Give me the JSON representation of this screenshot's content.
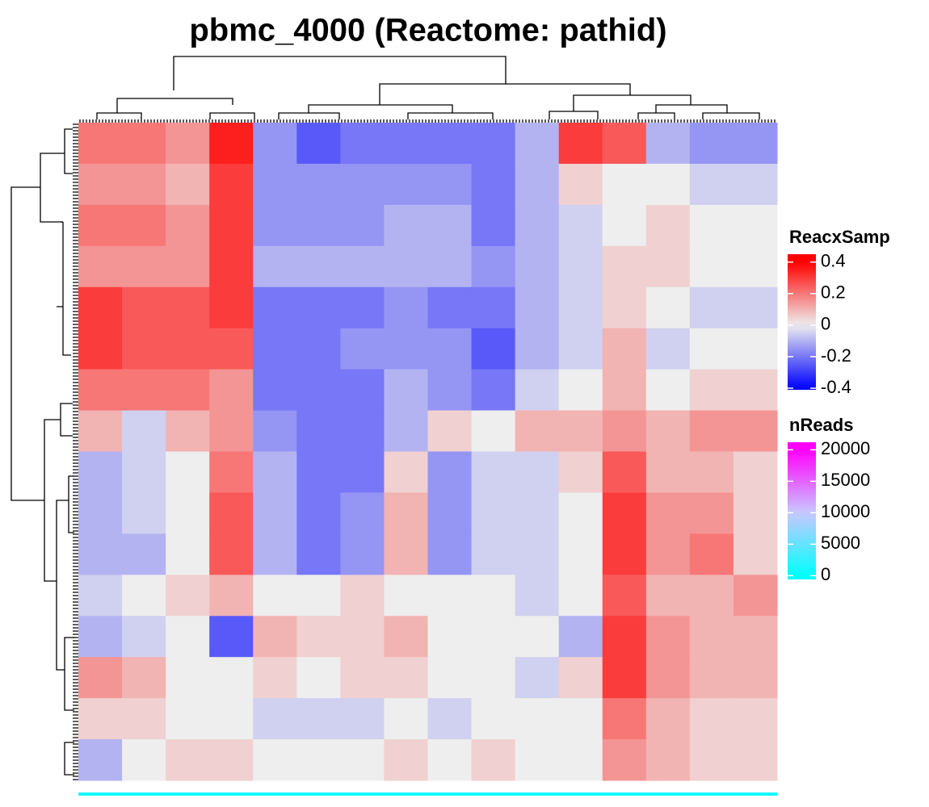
{
  "chart_data": {
    "type": "heatmap",
    "title": "pbmc_4000 (Reactome: pathid)",
    "values": [
      [
        0.2,
        0.2,
        0.15,
        0.35,
        -0.15,
        -0.25,
        -0.2,
        -0.2,
        -0.2,
        -0.2,
        -0.1,
        0.3,
        0.25,
        -0.1,
        -0.15,
        -0.15
      ],
      [
        0.15,
        0.15,
        0.1,
        0.3,
        -0.15,
        -0.15,
        -0.15,
        -0.15,
        -0.15,
        -0.2,
        -0.1,
        0.05,
        0.0,
        0.0,
        -0.05,
        -0.05
      ],
      [
        0.2,
        0.2,
        0.15,
        0.3,
        -0.15,
        -0.15,
        -0.15,
        -0.1,
        -0.1,
        -0.2,
        -0.1,
        -0.05,
        0.0,
        0.05,
        0.0,
        0.0
      ],
      [
        0.15,
        0.15,
        0.15,
        0.3,
        -0.1,
        -0.1,
        -0.1,
        -0.1,
        -0.1,
        -0.15,
        -0.1,
        -0.05,
        0.05,
        0.05,
        0.0,
        0.0
      ],
      [
        0.3,
        0.25,
        0.25,
        0.3,
        -0.2,
        -0.2,
        -0.2,
        -0.15,
        -0.2,
        -0.2,
        -0.1,
        -0.05,
        0.05,
        0.0,
        -0.05,
        -0.05
      ],
      [
        0.3,
        0.25,
        0.25,
        0.25,
        -0.2,
        -0.2,
        -0.15,
        -0.15,
        -0.15,
        -0.25,
        -0.1,
        -0.05,
        0.1,
        -0.05,
        0.0,
        0.0
      ],
      [
        0.2,
        0.2,
        0.2,
        0.15,
        -0.2,
        -0.2,
        -0.2,
        -0.1,
        -0.15,
        -0.2,
        -0.05,
        0.0,
        0.1,
        0.0,
        0.05,
        0.05
      ],
      [
        0.1,
        -0.05,
        0.1,
        0.15,
        -0.15,
        -0.2,
        -0.2,
        -0.1,
        0.05,
        0.0,
        0.1,
        0.1,
        0.15,
        0.1,
        0.15,
        0.15
      ],
      [
        -0.1,
        -0.05,
        0.0,
        0.2,
        -0.1,
        -0.2,
        -0.2,
        0.05,
        -0.15,
        -0.05,
        -0.05,
        0.05,
        0.25,
        0.1,
        0.1,
        0.05
      ],
      [
        -0.1,
        -0.05,
        0.0,
        0.25,
        -0.1,
        -0.2,
        -0.15,
        0.1,
        -0.15,
        -0.05,
        -0.05,
        0.0,
        0.3,
        0.15,
        0.15,
        0.05
      ],
      [
        -0.1,
        -0.1,
        0.0,
        0.25,
        -0.1,
        -0.2,
        -0.15,
        0.1,
        -0.15,
        -0.05,
        -0.05,
        0.0,
        0.3,
        0.15,
        0.2,
        0.05
      ],
      [
        -0.05,
        0.0,
        0.05,
        0.1,
        0.0,
        0.0,
        0.05,
        0.0,
        0.0,
        0.0,
        -0.05,
        0.0,
        0.25,
        0.1,
        0.1,
        0.15
      ],
      [
        -0.1,
        -0.05,
        0.0,
        -0.25,
        0.1,
        0.05,
        0.05,
        0.1,
        0.0,
        0.0,
        0.0,
        -0.1,
        0.3,
        0.15,
        0.1,
        0.1
      ],
      [
        0.15,
        0.1,
        0.0,
        0.0,
        0.05,
        0.0,
        0.05,
        0.05,
        0.0,
        0.0,
        -0.05,
        0.05,
        0.3,
        0.15,
        0.1,
        0.1
      ],
      [
        0.05,
        0.05,
        0.0,
        0.0,
        -0.05,
        -0.05,
        -0.05,
        0.0,
        -0.05,
        0.0,
        0.0,
        0.0,
        0.2,
        0.1,
        0.05,
        0.05
      ],
      [
        -0.1,
        0.0,
        0.05,
        0.05,
        0.0,
        0.0,
        0.0,
        0.05,
        0.0,
        0.05,
        0.0,
        0.0,
        0.15,
        0.1,
        0.05,
        0.05
      ]
    ],
    "color_scale": {
      "name": "ReacxSamp",
      "colors": [
        "#0000ff",
        "#eeeeee",
        "#ff0000"
      ],
      "lim": [
        -0.41,
        0.45
      ],
      "ticks": [
        0.4,
        0.2,
        0,
        -0.2,
        -0.4
      ]
    },
    "annotation": {
      "name": "nReads",
      "colors": [
        "#00ffff",
        "#c8c8ff",
        "#ff00ff"
      ],
      "values": [
        1000,
        1000,
        1000,
        1000,
        1000,
        1000,
        1000,
        1000,
        1000,
        1000,
        1000,
        1000,
        1000,
        1000,
        1000,
        1000
      ],
      "lim": [
        -600,
        21200
      ],
      "ticks": [
        20000,
        15000,
        10000,
        5000,
        0
      ]
    }
  }
}
